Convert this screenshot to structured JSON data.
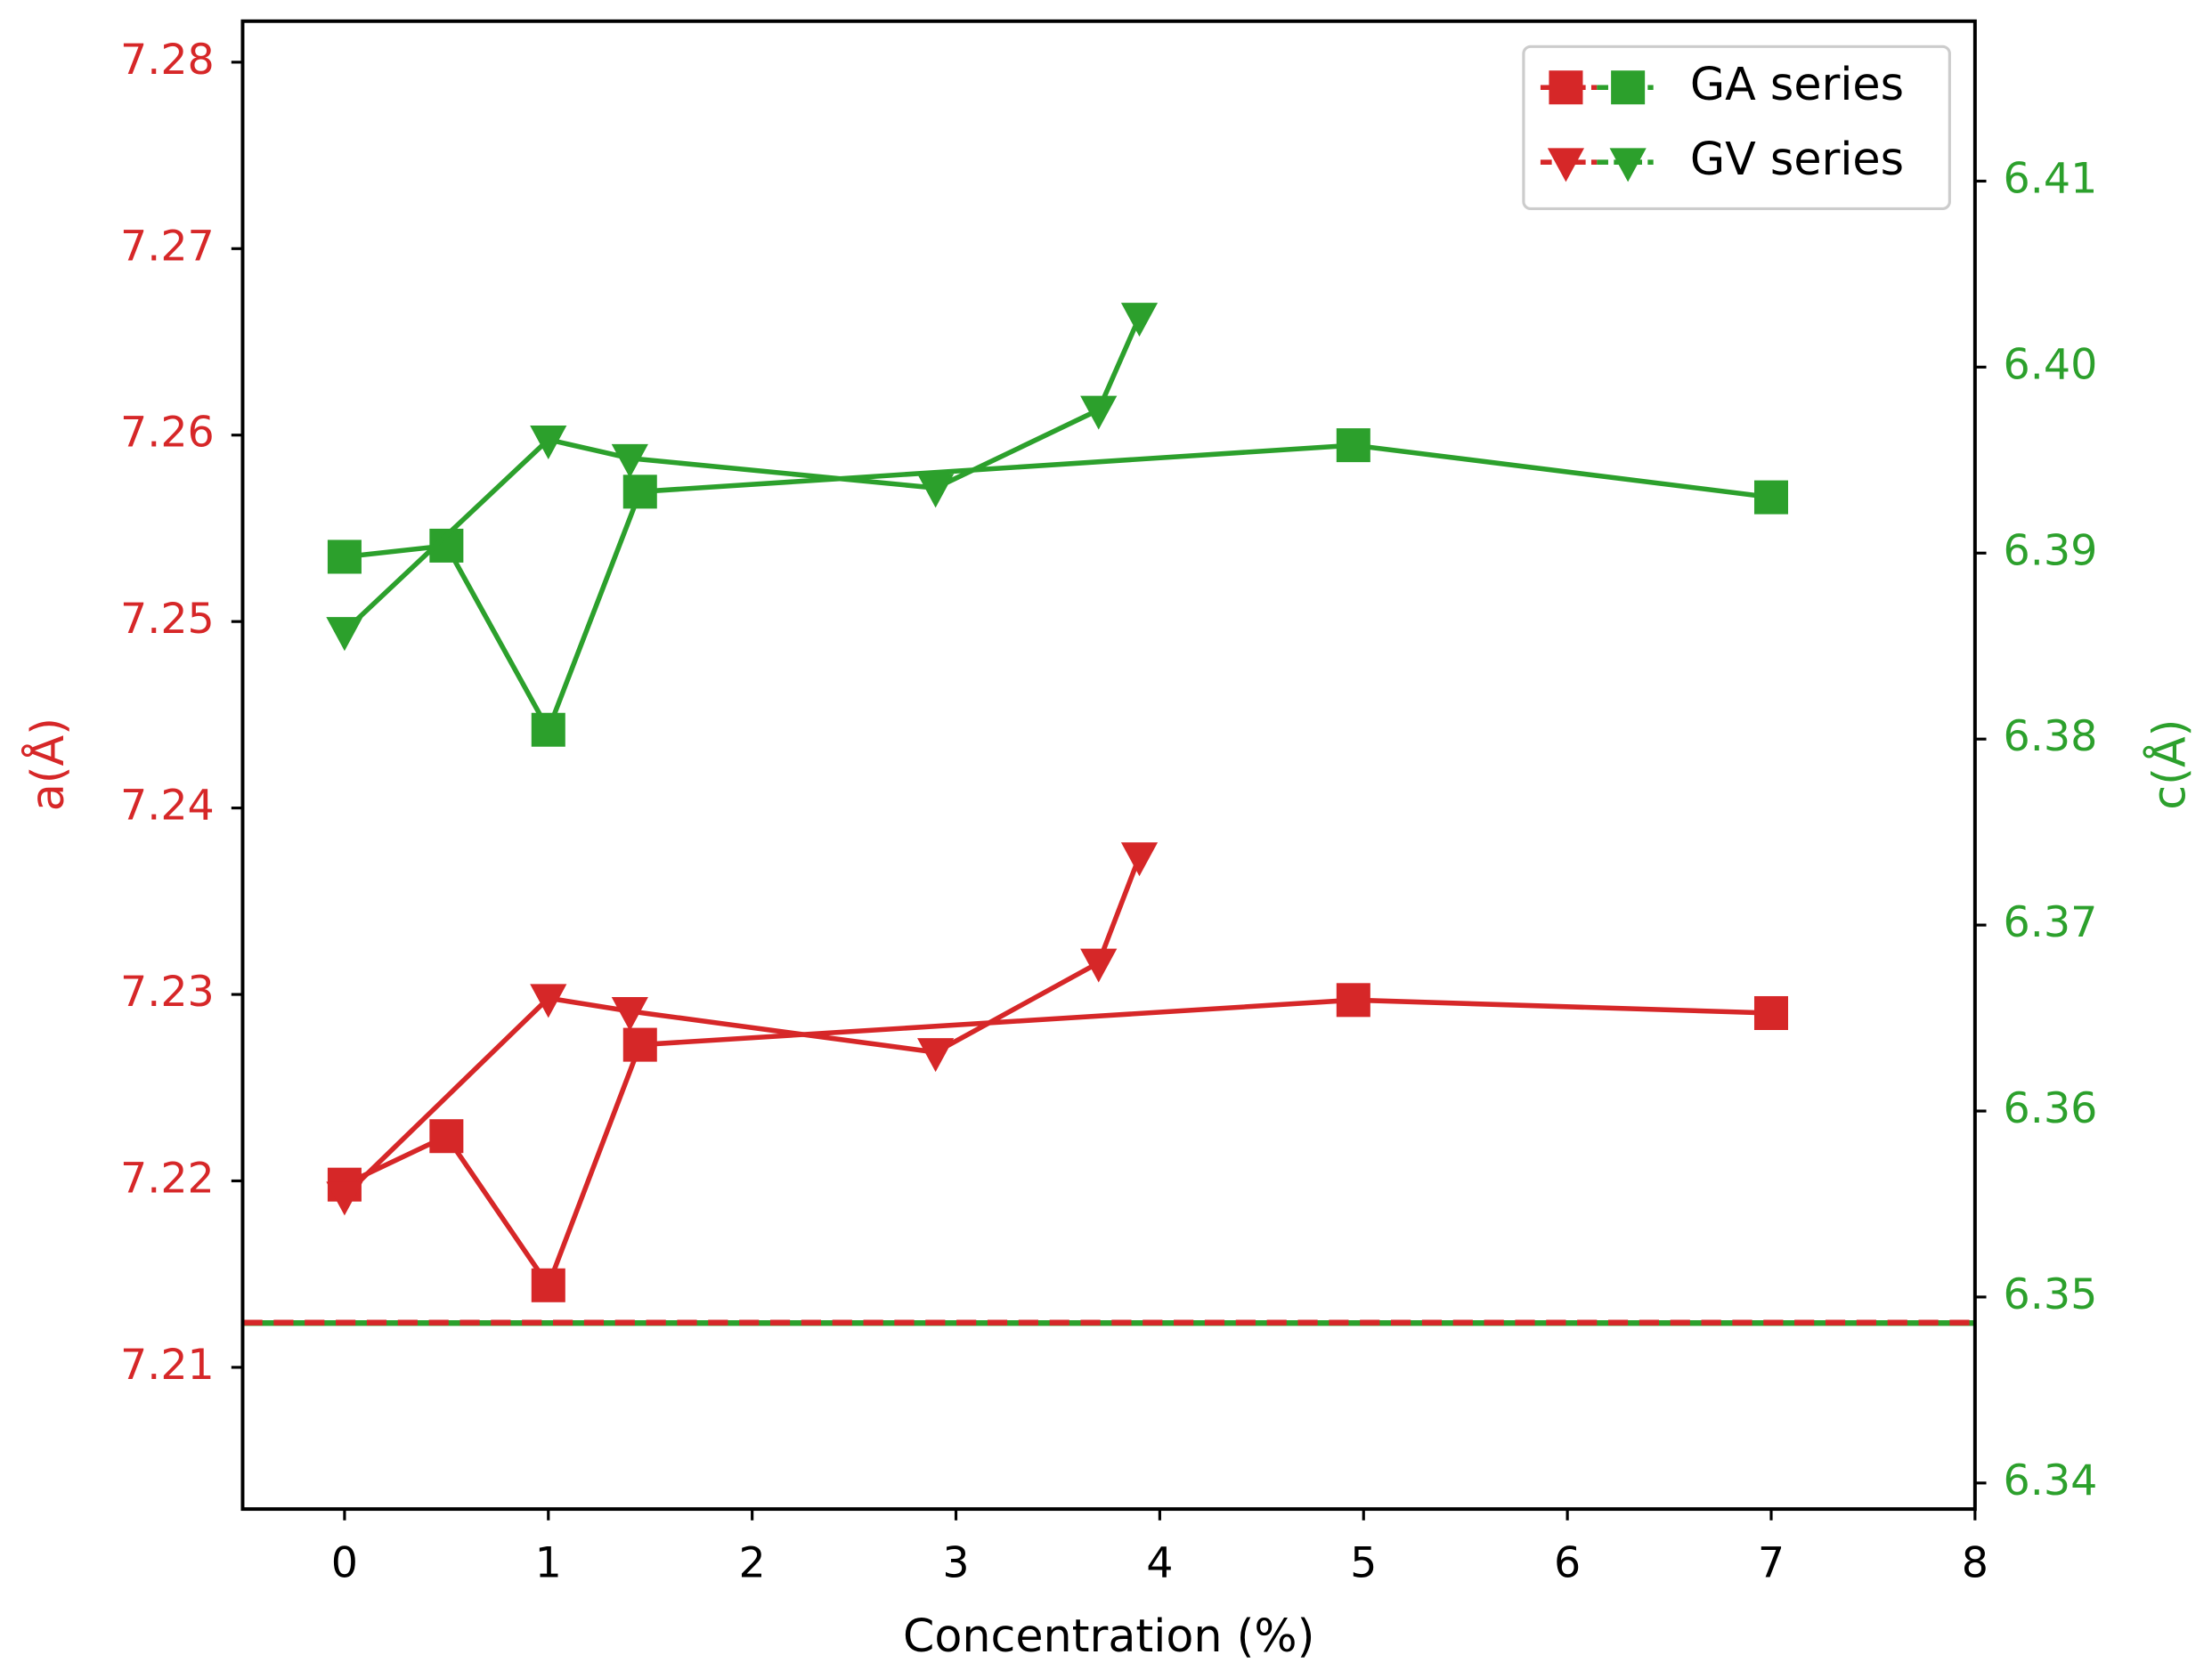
{
  "chart_data": {
    "type": "line",
    "x_label": "Concentration (%)",
    "y_label": "a(Å)",
    "y2_label": "c(Å)",
    "y_color": "#d62728",
    "y2_color": "#2ca02c",
    "xlim": [
      -0.5,
      8
    ],
    "xticks": [
      0,
      1,
      2,
      3,
      4,
      5,
      6,
      7,
      8
    ],
    "ylim": [
      7.2024,
      7.2822
    ],
    "yticks": [
      7.21,
      7.22,
      7.23,
      7.24,
      7.25,
      7.26,
      7.27,
      7.28
    ],
    "y2lim": [
      6.3386,
      6.4186
    ],
    "y2ticks": [
      6.34,
      6.35,
      6.36,
      6.37,
      6.38,
      6.39,
      {
        "value": 6.4,
        "label": "6.40"
      },
      6.41
    ],
    "legend": "upper right",
    "series": [
      {
        "name": "GA series",
        "marker": "square",
        "x": [
          0,
          0.5,
          1,
          1.45,
          4.95,
          7
        ],
        "values": [
          7.2198,
          7.2224,
          7.2144,
          7.2273,
          7.2297,
          7.229
        ],
        "values_y2": [
          6.3898,
          6.3904,
          6.3805,
          6.3933,
          6.3958,
          6.393
        ]
      },
      {
        "name": "GV series",
        "marker": "triangle-down",
        "x": [
          0,
          1,
          1.4,
          2.9,
          3.7,
          3.9
        ],
        "values": [
          7.2192,
          7.2298,
          7.2291,
          7.2269,
          7.2317,
          7.2374
        ],
        "values_y2": [
          6.3858,
          6.3961,
          6.3951,
          6.3935,
          6.3977,
          6.4027
        ]
      }
    ],
    "reference_lines": [
      {
        "axis": "y2",
        "value": 6.3486,
        "style": "solid"
      },
      {
        "axis": "y",
        "value": 7.2124,
        "style": "dashed"
      }
    ]
  }
}
